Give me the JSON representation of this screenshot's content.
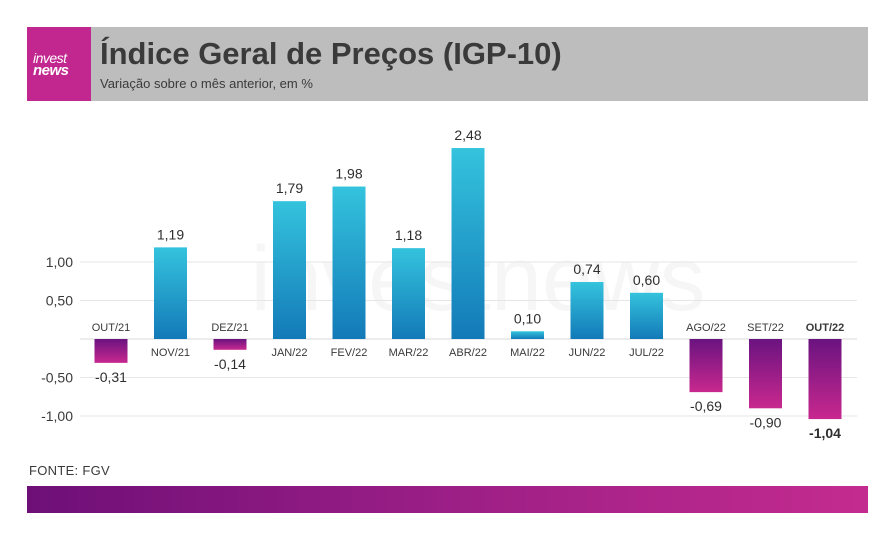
{
  "header": {
    "logo_line1": "invest",
    "logo_line2": "news",
    "title": "Índice Geral de Preços (IGP-10)",
    "subtitle": "Variação sobre o mês anterior, em %"
  },
  "source": "FONTE: FGV",
  "watermark": "investnews",
  "colors": {
    "header_bg": "#bdbdbd",
    "brand": "#c2278f",
    "positive_top": "#34c3dd",
    "positive_bottom": "#137ab8",
    "negative_top": "#6a1380",
    "negative_bottom": "#c8288e",
    "footer_gradient": [
      "#6e0f78",
      "#c42b8f"
    ]
  },
  "chart_data": {
    "type": "bar",
    "categories": [
      "OUT/21",
      "NOV/21",
      "DEZ/21",
      "JAN/22",
      "FEV/22",
      "MAR/22",
      "ABR/22",
      "MAI/22",
      "JUN/22",
      "JUL/22",
      "AGO/22",
      "SET/22",
      "OUT/22"
    ],
    "values": [
      -0.31,
      1.19,
      -0.14,
      1.79,
      1.98,
      1.18,
      2.48,
      0.1,
      0.74,
      0.6,
      -0.69,
      -0.9,
      -1.04
    ],
    "value_labels": [
      "-0,31",
      "1,19",
      "-0,14",
      "1,79",
      "1,98",
      "1,18",
      "2,48",
      "0,10",
      "0,74",
      "0,60",
      "-0,69",
      "-0,90",
      "-1,04"
    ],
    "highlight": "OUT/22",
    "yticks": [
      1.0,
      0.5,
      -0.5,
      -1.0
    ],
    "ytick_labels": [
      "1,00",
      "0,50",
      "-0,50",
      "-1,00"
    ],
    "grid": true
  }
}
